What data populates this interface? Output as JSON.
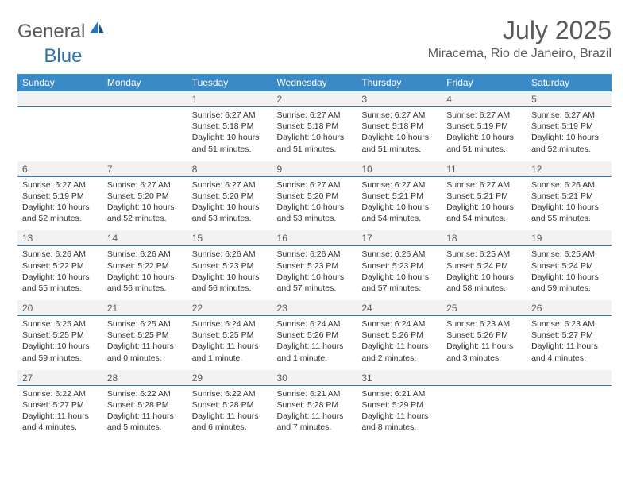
{
  "logo": {
    "part1": "General",
    "part2": "Blue"
  },
  "title": "July 2025",
  "location": "Miracema, Rio de Janeiro, Brazil",
  "colors": {
    "header_bg": "#3a8ac8",
    "header_fg": "#ffffff",
    "daynum_bg": "#f2f2f2",
    "daynum_border": "#2e75b6",
    "text": "#333333",
    "muted": "#595959"
  },
  "fonts": {
    "base": "Arial",
    "title_size": 32,
    "location_size": 16,
    "th_size": 12,
    "cell_size": 10.5
  },
  "daynames": [
    "Sunday",
    "Monday",
    "Tuesday",
    "Wednesday",
    "Thursday",
    "Friday",
    "Saturday"
  ],
  "weeks": [
    [
      null,
      null,
      {
        "n": "1",
        "sr": "6:27 AM",
        "ss": "5:18 PM",
        "dl": "10 hours and 51 minutes."
      },
      {
        "n": "2",
        "sr": "6:27 AM",
        "ss": "5:18 PM",
        "dl": "10 hours and 51 minutes."
      },
      {
        "n": "3",
        "sr": "6:27 AM",
        "ss": "5:18 PM",
        "dl": "10 hours and 51 minutes."
      },
      {
        "n": "4",
        "sr": "6:27 AM",
        "ss": "5:19 PM",
        "dl": "10 hours and 51 minutes."
      },
      {
        "n": "5",
        "sr": "6:27 AM",
        "ss": "5:19 PM",
        "dl": "10 hours and 52 minutes."
      }
    ],
    [
      {
        "n": "6",
        "sr": "6:27 AM",
        "ss": "5:19 PM",
        "dl": "10 hours and 52 minutes."
      },
      {
        "n": "7",
        "sr": "6:27 AM",
        "ss": "5:20 PM",
        "dl": "10 hours and 52 minutes."
      },
      {
        "n": "8",
        "sr": "6:27 AM",
        "ss": "5:20 PM",
        "dl": "10 hours and 53 minutes."
      },
      {
        "n": "9",
        "sr": "6:27 AM",
        "ss": "5:20 PM",
        "dl": "10 hours and 53 minutes."
      },
      {
        "n": "10",
        "sr": "6:27 AM",
        "ss": "5:21 PM",
        "dl": "10 hours and 54 minutes."
      },
      {
        "n": "11",
        "sr": "6:27 AM",
        "ss": "5:21 PM",
        "dl": "10 hours and 54 minutes."
      },
      {
        "n": "12",
        "sr": "6:26 AM",
        "ss": "5:21 PM",
        "dl": "10 hours and 55 minutes."
      }
    ],
    [
      {
        "n": "13",
        "sr": "6:26 AM",
        "ss": "5:22 PM",
        "dl": "10 hours and 55 minutes."
      },
      {
        "n": "14",
        "sr": "6:26 AM",
        "ss": "5:22 PM",
        "dl": "10 hours and 56 minutes."
      },
      {
        "n": "15",
        "sr": "6:26 AM",
        "ss": "5:23 PM",
        "dl": "10 hours and 56 minutes."
      },
      {
        "n": "16",
        "sr": "6:26 AM",
        "ss": "5:23 PM",
        "dl": "10 hours and 57 minutes."
      },
      {
        "n": "17",
        "sr": "6:26 AM",
        "ss": "5:23 PM",
        "dl": "10 hours and 57 minutes."
      },
      {
        "n": "18",
        "sr": "6:25 AM",
        "ss": "5:24 PM",
        "dl": "10 hours and 58 minutes."
      },
      {
        "n": "19",
        "sr": "6:25 AM",
        "ss": "5:24 PM",
        "dl": "10 hours and 59 minutes."
      }
    ],
    [
      {
        "n": "20",
        "sr": "6:25 AM",
        "ss": "5:25 PM",
        "dl": "10 hours and 59 minutes."
      },
      {
        "n": "21",
        "sr": "6:25 AM",
        "ss": "5:25 PM",
        "dl": "11 hours and 0 minutes."
      },
      {
        "n": "22",
        "sr": "6:24 AM",
        "ss": "5:25 PM",
        "dl": "11 hours and 1 minute."
      },
      {
        "n": "23",
        "sr": "6:24 AM",
        "ss": "5:26 PM",
        "dl": "11 hours and 1 minute."
      },
      {
        "n": "24",
        "sr": "6:24 AM",
        "ss": "5:26 PM",
        "dl": "11 hours and 2 minutes."
      },
      {
        "n": "25",
        "sr": "6:23 AM",
        "ss": "5:26 PM",
        "dl": "11 hours and 3 minutes."
      },
      {
        "n": "26",
        "sr": "6:23 AM",
        "ss": "5:27 PM",
        "dl": "11 hours and 4 minutes."
      }
    ],
    [
      {
        "n": "27",
        "sr": "6:22 AM",
        "ss": "5:27 PM",
        "dl": "11 hours and 4 minutes."
      },
      {
        "n": "28",
        "sr": "6:22 AM",
        "ss": "5:28 PM",
        "dl": "11 hours and 5 minutes."
      },
      {
        "n": "29",
        "sr": "6:22 AM",
        "ss": "5:28 PM",
        "dl": "11 hours and 6 minutes."
      },
      {
        "n": "30",
        "sr": "6:21 AM",
        "ss": "5:28 PM",
        "dl": "11 hours and 7 minutes."
      },
      {
        "n": "31",
        "sr": "6:21 AM",
        "ss": "5:29 PM",
        "dl": "11 hours and 8 minutes."
      },
      null,
      null
    ]
  ],
  "labels": {
    "sunrise": "Sunrise:",
    "sunset": "Sunset:",
    "daylight": "Daylight:"
  }
}
